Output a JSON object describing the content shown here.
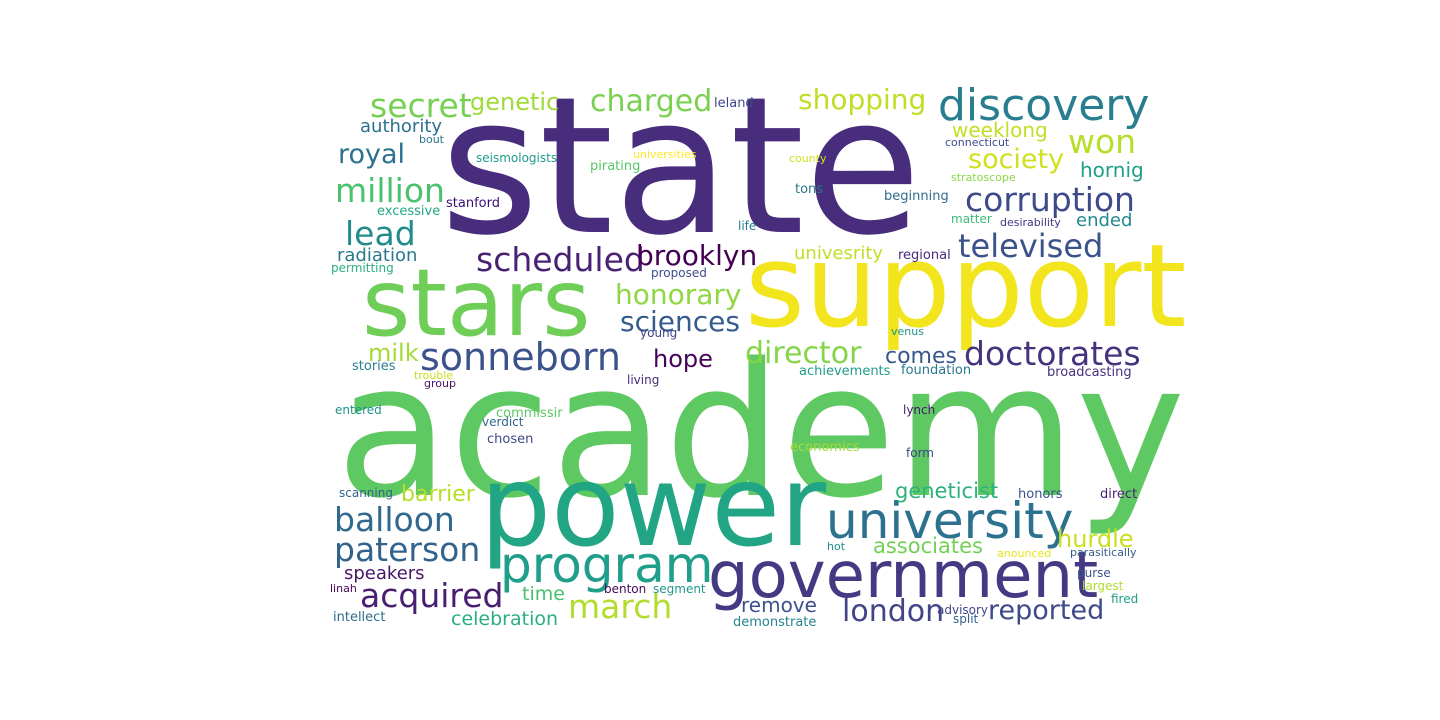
{
  "word_cloud": {
    "words": [
      {
        "text": "state",
        "color": "#472d7b"
      },
      {
        "text": "academy",
        "color": "#5ec962"
      },
      {
        "text": "support",
        "color": "#f2e51d"
      },
      {
        "text": "power",
        "color": "#21a585"
      },
      {
        "text": "stars",
        "color": "#6ece58"
      },
      {
        "text": "government",
        "color": "#443a83"
      },
      {
        "text": "university",
        "color": "#2c728e"
      },
      {
        "text": "program",
        "color": "#1f9e89"
      },
      {
        "text": "discovery",
        "color": "#287d8e"
      },
      {
        "text": "sonneborn",
        "color": "#3b528b"
      },
      {
        "text": "doctorates",
        "color": "#46337e"
      },
      {
        "text": "corruption",
        "color": "#3e4a89"
      },
      {
        "text": "scheduled",
        "color": "#482173"
      },
      {
        "text": "secret",
        "color": "#75d054"
      },
      {
        "text": "charged",
        "color": "#7ad151"
      },
      {
        "text": "shopping",
        "color": "#bddf26"
      },
      {
        "text": "won",
        "color": "#b8de29"
      },
      {
        "text": "million",
        "color": "#4ac16d"
      },
      {
        "text": "lead",
        "color": "#228c8d"
      },
      {
        "text": "televised",
        "color": "#3b528b"
      },
      {
        "text": "brooklyn",
        "color": "#440154"
      },
      {
        "text": "honorary",
        "color": "#8fd744"
      },
      {
        "text": "sciences",
        "color": "#365c8d"
      },
      {
        "text": "director",
        "color": "#86d549"
      },
      {
        "text": "acquired",
        "color": "#481f70"
      },
      {
        "text": "march",
        "color": "#b2dd2d"
      },
      {
        "text": "london",
        "color": "#414487"
      },
      {
        "text": "reported",
        "color": "#3e4a89"
      },
      {
        "text": "paterson",
        "color": "#33638d"
      },
      {
        "text": "balloon",
        "color": "#31688e"
      },
      {
        "text": "royal",
        "color": "#2c728e"
      },
      {
        "text": "society",
        "color": "#d0e11c"
      },
      {
        "text": "genetic",
        "color": "#a0da39"
      },
      {
        "text": "comes",
        "color": "#38588c"
      },
      {
        "text": "hope",
        "color": "#450457"
      },
      {
        "text": "milk",
        "color": "#a5db36"
      },
      {
        "text": "weeklong",
        "color": "#c2df23"
      },
      {
        "text": "hornig",
        "color": "#1fa088"
      },
      {
        "text": "ended",
        "color": "#23898e"
      },
      {
        "text": "radiation",
        "color": "#2a788e"
      },
      {
        "text": "authority",
        "color": "#2d708e"
      },
      {
        "text": "hurdle",
        "color": "#c8e020"
      },
      {
        "text": "geneticist",
        "color": "#2db27d"
      },
      {
        "text": "associates",
        "color": "#73d056"
      },
      {
        "text": "remove",
        "color": "#3b528b"
      },
      {
        "text": "barrier",
        "color": "#b5de2b"
      },
      {
        "text": "speakers",
        "color": "#481668"
      },
      {
        "text": "time",
        "color": "#48c16e"
      },
      {
        "text": "celebration",
        "color": "#29af7f"
      },
      {
        "text": "univesrity",
        "color": "#c0df25"
      },
      {
        "text": "leland",
        "color": "#3f4889"
      },
      {
        "text": "bout",
        "color": "#2a788e"
      },
      {
        "text": "seismologists",
        "color": "#1e9b8a"
      },
      {
        "text": "universities",
        "color": "#fde725"
      },
      {
        "text": "pirating",
        "color": "#56c667"
      },
      {
        "text": "county",
        "color": "#d2e21b"
      },
      {
        "text": "connecticut",
        "color": "#3e4989"
      },
      {
        "text": "stratoscope",
        "color": "#8bd646"
      },
      {
        "text": "tons",
        "color": "#297b8e"
      },
      {
        "text": "beginning",
        "color": "#2f6c8e"
      },
      {
        "text": "excessive",
        "color": "#22a884"
      },
      {
        "text": "stanford",
        "color": "#3b0f70"
      },
      {
        "text": "matter",
        "color": "#3bbb75"
      },
      {
        "text": "desirability",
        "color": "#46327e"
      },
      {
        "text": "life",
        "color": "#287c8e"
      },
      {
        "text": "regional",
        "color": "#472c7a"
      },
      {
        "text": "proposed",
        "color": "#3e4c8a"
      },
      {
        "text": "permitting",
        "color": "#2ab07f"
      },
      {
        "text": "venus",
        "color": "#1f958b"
      },
      {
        "text": "young",
        "color": "#404688"
      },
      {
        "text": "stories",
        "color": "#277f8e"
      },
      {
        "text": "trouble",
        "color": "#c5e021"
      },
      {
        "text": "group",
        "color": "#471063"
      },
      {
        "text": "living",
        "color": "#472a7a"
      },
      {
        "text": "achievements",
        "color": "#1e9c89"
      },
      {
        "text": "foundation",
        "color": "#2a788e"
      },
      {
        "text": "broadcasting",
        "color": "#46327e"
      },
      {
        "text": "entered",
        "color": "#20928c"
      },
      {
        "text": "commissir",
        "color": "#5cc863"
      },
      {
        "text": "verdict",
        "color": "#31668e"
      },
      {
        "text": "lynch",
        "color": "#48186a"
      },
      {
        "text": "chosen",
        "color": "#3f4788"
      },
      {
        "text": "economics",
        "color": "#a8db34"
      },
      {
        "text": "form",
        "color": "#404588"
      },
      {
        "text": "scanning",
        "color": "#33638d"
      },
      {
        "text": "honors",
        "color": "#3b528b"
      },
      {
        "text": "direct",
        "color": "#482173"
      },
      {
        "text": "hot",
        "color": "#21908d"
      },
      {
        "text": "anounced",
        "color": "#e5e419"
      },
      {
        "text": "parasitically",
        "color": "#375a8c"
      },
      {
        "text": "purse",
        "color": "#3b528b"
      },
      {
        "text": "largest",
        "color": "#b0dd2f"
      },
      {
        "text": "fired",
        "color": "#1f9f88"
      },
      {
        "text": "linah",
        "color": "#440154"
      },
      {
        "text": "benton",
        "color": "#46085c"
      },
      {
        "text": "segment",
        "color": "#1f988b"
      },
      {
        "text": "intellect",
        "color": "#2f6c8e"
      },
      {
        "text": "demonstrate",
        "color": "#25848e"
      },
      {
        "text": "advisory",
        "color": "#404688"
      },
      {
        "text": "split",
        "color": "#33638d"
      }
    ]
  }
}
